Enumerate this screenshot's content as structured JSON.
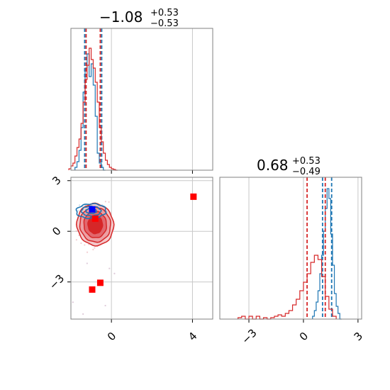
{
  "chart_data": [
    {
      "type": "histogram",
      "panel": "top-left",
      "title": "−1.08",
      "title_sup": "+0.53",
      "title_sub": "−0.53",
      "xlim": [
        -2.0,
        5.0
      ],
      "grid": true,
      "x_ticks": [
        0,
        4
      ],
      "series": [
        {
          "color": "#1f77b4",
          "bin_edges": [
            -1.8,
            -1.7,
            -1.6,
            -1.5,
            -1.4,
            -1.3,
            -1.2,
            -1.1,
            -1.0,
            -0.9,
            -0.8,
            -0.7,
            -0.6,
            -0.5,
            -0.4,
            -0.3
          ],
          "counts": [
            0.02,
            0.06,
            0.14,
            0.3,
            0.55,
            0.72,
            0.82,
            0.66,
            0.75,
            0.6,
            0.38,
            0.12,
            0.05,
            0.02,
            0.0
          ],
          "quantiles": [
            -1.32,
            -0.48
          ]
        },
        {
          "color": "#d62728",
          "bin_edges": [
            -2.1,
            -2.0,
            -1.9,
            -1.8,
            -1.7,
            -1.6,
            -1.5,
            -1.4,
            -1.3,
            -1.2,
            -1.1,
            -1.0,
            -0.9,
            -0.8,
            -0.7,
            -0.6,
            -0.5,
            -0.4,
            -0.3,
            -0.2,
            -0.1,
            0.0,
            0.1,
            0.2,
            0.3
          ],
          "counts": [
            0.01,
            0.03,
            0.05,
            0.1,
            0.16,
            0.22,
            0.33,
            0.48,
            0.64,
            0.74,
            0.86,
            0.78,
            0.72,
            0.62,
            0.48,
            0.3,
            0.2,
            0.12,
            0.07,
            0.04,
            0.02,
            0.01,
            0.005,
            0.0
          ],
          "quantiles": [
            -1.25,
            -0.55
          ]
        }
      ]
    },
    {
      "type": "scatter-contour",
      "panel": "bottom-left",
      "xlim": [
        -2.0,
        5.0
      ],
      "ylim": [
        -5.2,
        3.2
      ],
      "grid": true,
      "x_ticks": [
        0,
        4
      ],
      "y_ticks": [
        -3,
        0,
        3
      ],
      "red_contour_center": [
        -0.8,
        0.4
      ],
      "red_contour_radii": [
        [
          0.35,
          0.55
        ],
        [
          0.55,
          0.8
        ],
        [
          0.75,
          1.05
        ],
        [
          0.9,
          1.25
        ]
      ],
      "blue_contour_center": [
        -1.0,
        1.2
      ],
      "blue_contour_radii": [
        [
          0.25,
          0.15
        ],
        [
          0.45,
          0.3
        ],
        [
          0.7,
          0.45
        ]
      ],
      "red_markers": [
        [
          4.05,
          2.05
        ],
        [
          -0.95,
          -3.45
        ],
        [
          -0.55,
          -3.05
        ],
        [
          -0.8,
          0.75
        ]
      ],
      "blue_marker": [
        -0.95,
        1.3
      ]
    },
    {
      "type": "histogram",
      "panel": "bottom-right",
      "title": "0.68",
      "title_sup": "+0.53",
      "title_sub": "−0.49",
      "xlim": [
        -4.6,
        3.2
      ],
      "grid": true,
      "x_ticks": [
        -3,
        0,
        3
      ],
      "series": [
        {
          "color": "#1f77b4",
          "bin_edges": [
            0.5,
            0.6,
            0.7,
            0.8,
            0.9,
            1.0,
            1.1,
            1.2,
            1.3,
            1.4,
            1.5,
            1.6,
            1.7,
            1.8,
            1.9,
            2.0,
            2.1
          ],
          "counts": [
            0.02,
            0.06,
            0.12,
            0.2,
            0.32,
            0.45,
            0.62,
            0.78,
            0.92,
            0.85,
            0.6,
            0.38,
            0.18,
            0.09,
            0.04,
            0.0
          ],
          "quantiles": [
            1.05,
            1.55
          ]
        },
        {
          "color": "#d62728",
          "bin_edges": [
            -3.6,
            -3.4,
            -3.2,
            -3.0,
            -2.8,
            -2.6,
            -2.4,
            -2.2,
            -2.0,
            -1.8,
            -1.6,
            -1.4,
            -1.2,
            -1.0,
            -0.8,
            -0.6,
            -0.4,
            -0.2,
            0.0,
            0.2,
            0.4,
            0.6,
            0.8,
            1.0,
            1.2,
            1.4,
            1.6,
            1.8
          ],
          "counts": [
            0.01,
            0.02,
            0.0,
            0.02,
            0.0,
            0.02,
            0.0,
            0.01,
            0.0,
            0.01,
            0.02,
            0.03,
            0.02,
            0.04,
            0.06,
            0.1,
            0.14,
            0.2,
            0.26,
            0.32,
            0.4,
            0.45,
            0.42,
            0.3,
            0.16,
            0.07,
            0.02
          ],
          "quantiles": [
            0.2,
            1.2
          ]
        }
      ]
    }
  ]
}
